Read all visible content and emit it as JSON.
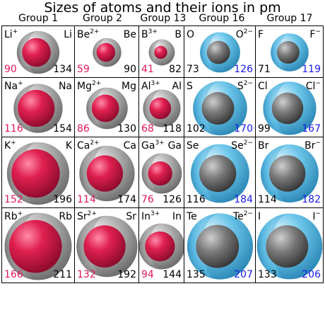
{
  "title": "Sizes of atoms and their ions in pm",
  "groups": [
    "Group 1",
    "Group 2",
    "Group 13",
    "Group 16",
    "Group 17"
  ],
  "colors": {
    "cation": "#e0185a",
    "anion": "#1a1ae6",
    "atom": "#a8a8a8",
    "anion_shell": "#5cc0e8"
  },
  "rows": [
    [
      {
        "atom": "Li",
        "ion": "Li",
        "charge": "+",
        "atom_r": 134,
        "ion_r": 90,
        "ion_type": "cation"
      },
      {
        "atom": "Be",
        "ion": "Be",
        "charge": "2+",
        "atom_r": 90,
        "ion_r": 59,
        "ion_type": "cation"
      },
      {
        "atom": "B",
        "ion": "B",
        "charge": "3+",
        "atom_r": 82,
        "ion_r": 41,
        "ion_type": "cation"
      },
      {
        "atom": "O",
        "ion": "O",
        "charge": "2−",
        "atom_r": 73,
        "ion_r": 126,
        "ion_type": "anion"
      },
      {
        "atom": "F",
        "ion": "F",
        "charge": "−",
        "atom_r": 71,
        "ion_r": 119,
        "ion_type": "anion"
      }
    ],
    [
      {
        "atom": "Na",
        "ion": "Na",
        "charge": "+",
        "atom_r": 154,
        "ion_r": 116,
        "ion_type": "cation"
      },
      {
        "atom": "Mg",
        "ion": "Mg",
        "charge": "2+",
        "atom_r": 130,
        "ion_r": 86,
        "ion_type": "cation"
      },
      {
        "atom": "Al",
        "ion": "Al",
        "charge": "3+",
        "atom_r": 118,
        "ion_r": 68,
        "ion_type": "cation"
      },
      {
        "atom": "S",
        "ion": "S",
        "charge": "2−",
        "atom_r": 102,
        "ion_r": 170,
        "ion_type": "anion"
      },
      {
        "atom": "Cl",
        "ion": "Cl",
        "charge": "−",
        "atom_r": 99,
        "ion_r": 167,
        "ion_type": "anion"
      }
    ],
    [
      {
        "atom": "K",
        "ion": "K",
        "charge": "+",
        "atom_r": 196,
        "ion_r": 152,
        "ion_type": "cation"
      },
      {
        "atom": "Ca",
        "ion": "Ca",
        "charge": "2+",
        "atom_r": 174,
        "ion_r": 114,
        "ion_type": "cation"
      },
      {
        "atom": "Ga",
        "ion": "Ga",
        "charge": "3+",
        "atom_r": 126,
        "ion_r": 76,
        "ion_type": "cation"
      },
      {
        "atom": "Se",
        "ion": "Se",
        "charge": "2−",
        "atom_r": 116,
        "ion_r": 184,
        "ion_type": "anion"
      },
      {
        "atom": "Br",
        "ion": "Br",
        "charge": "−",
        "atom_r": 114,
        "ion_r": 182,
        "ion_type": "anion"
      }
    ],
    [
      {
        "atom": "Rb",
        "ion": "Rb",
        "charge": "+",
        "atom_r": 211,
        "ion_r": 166,
        "ion_type": "cation"
      },
      {
        "atom": "Sr",
        "ion": "Sr",
        "charge": "2+",
        "atom_r": 192,
        "ion_r": 132,
        "ion_type": "cation"
      },
      {
        "atom": "In",
        "ion": "In",
        "charge": "3+",
        "atom_r": 144,
        "ion_r": 94,
        "ion_type": "cation"
      },
      {
        "atom": "Te",
        "ion": "Te",
        "charge": "2−",
        "atom_r": 135,
        "ion_r": 207,
        "ion_type": "anion"
      },
      {
        "atom": "I",
        "ion": "I",
        "charge": "−",
        "atom_r": 133,
        "ion_r": 206,
        "ion_type": "anion"
      }
    ]
  ]
}
